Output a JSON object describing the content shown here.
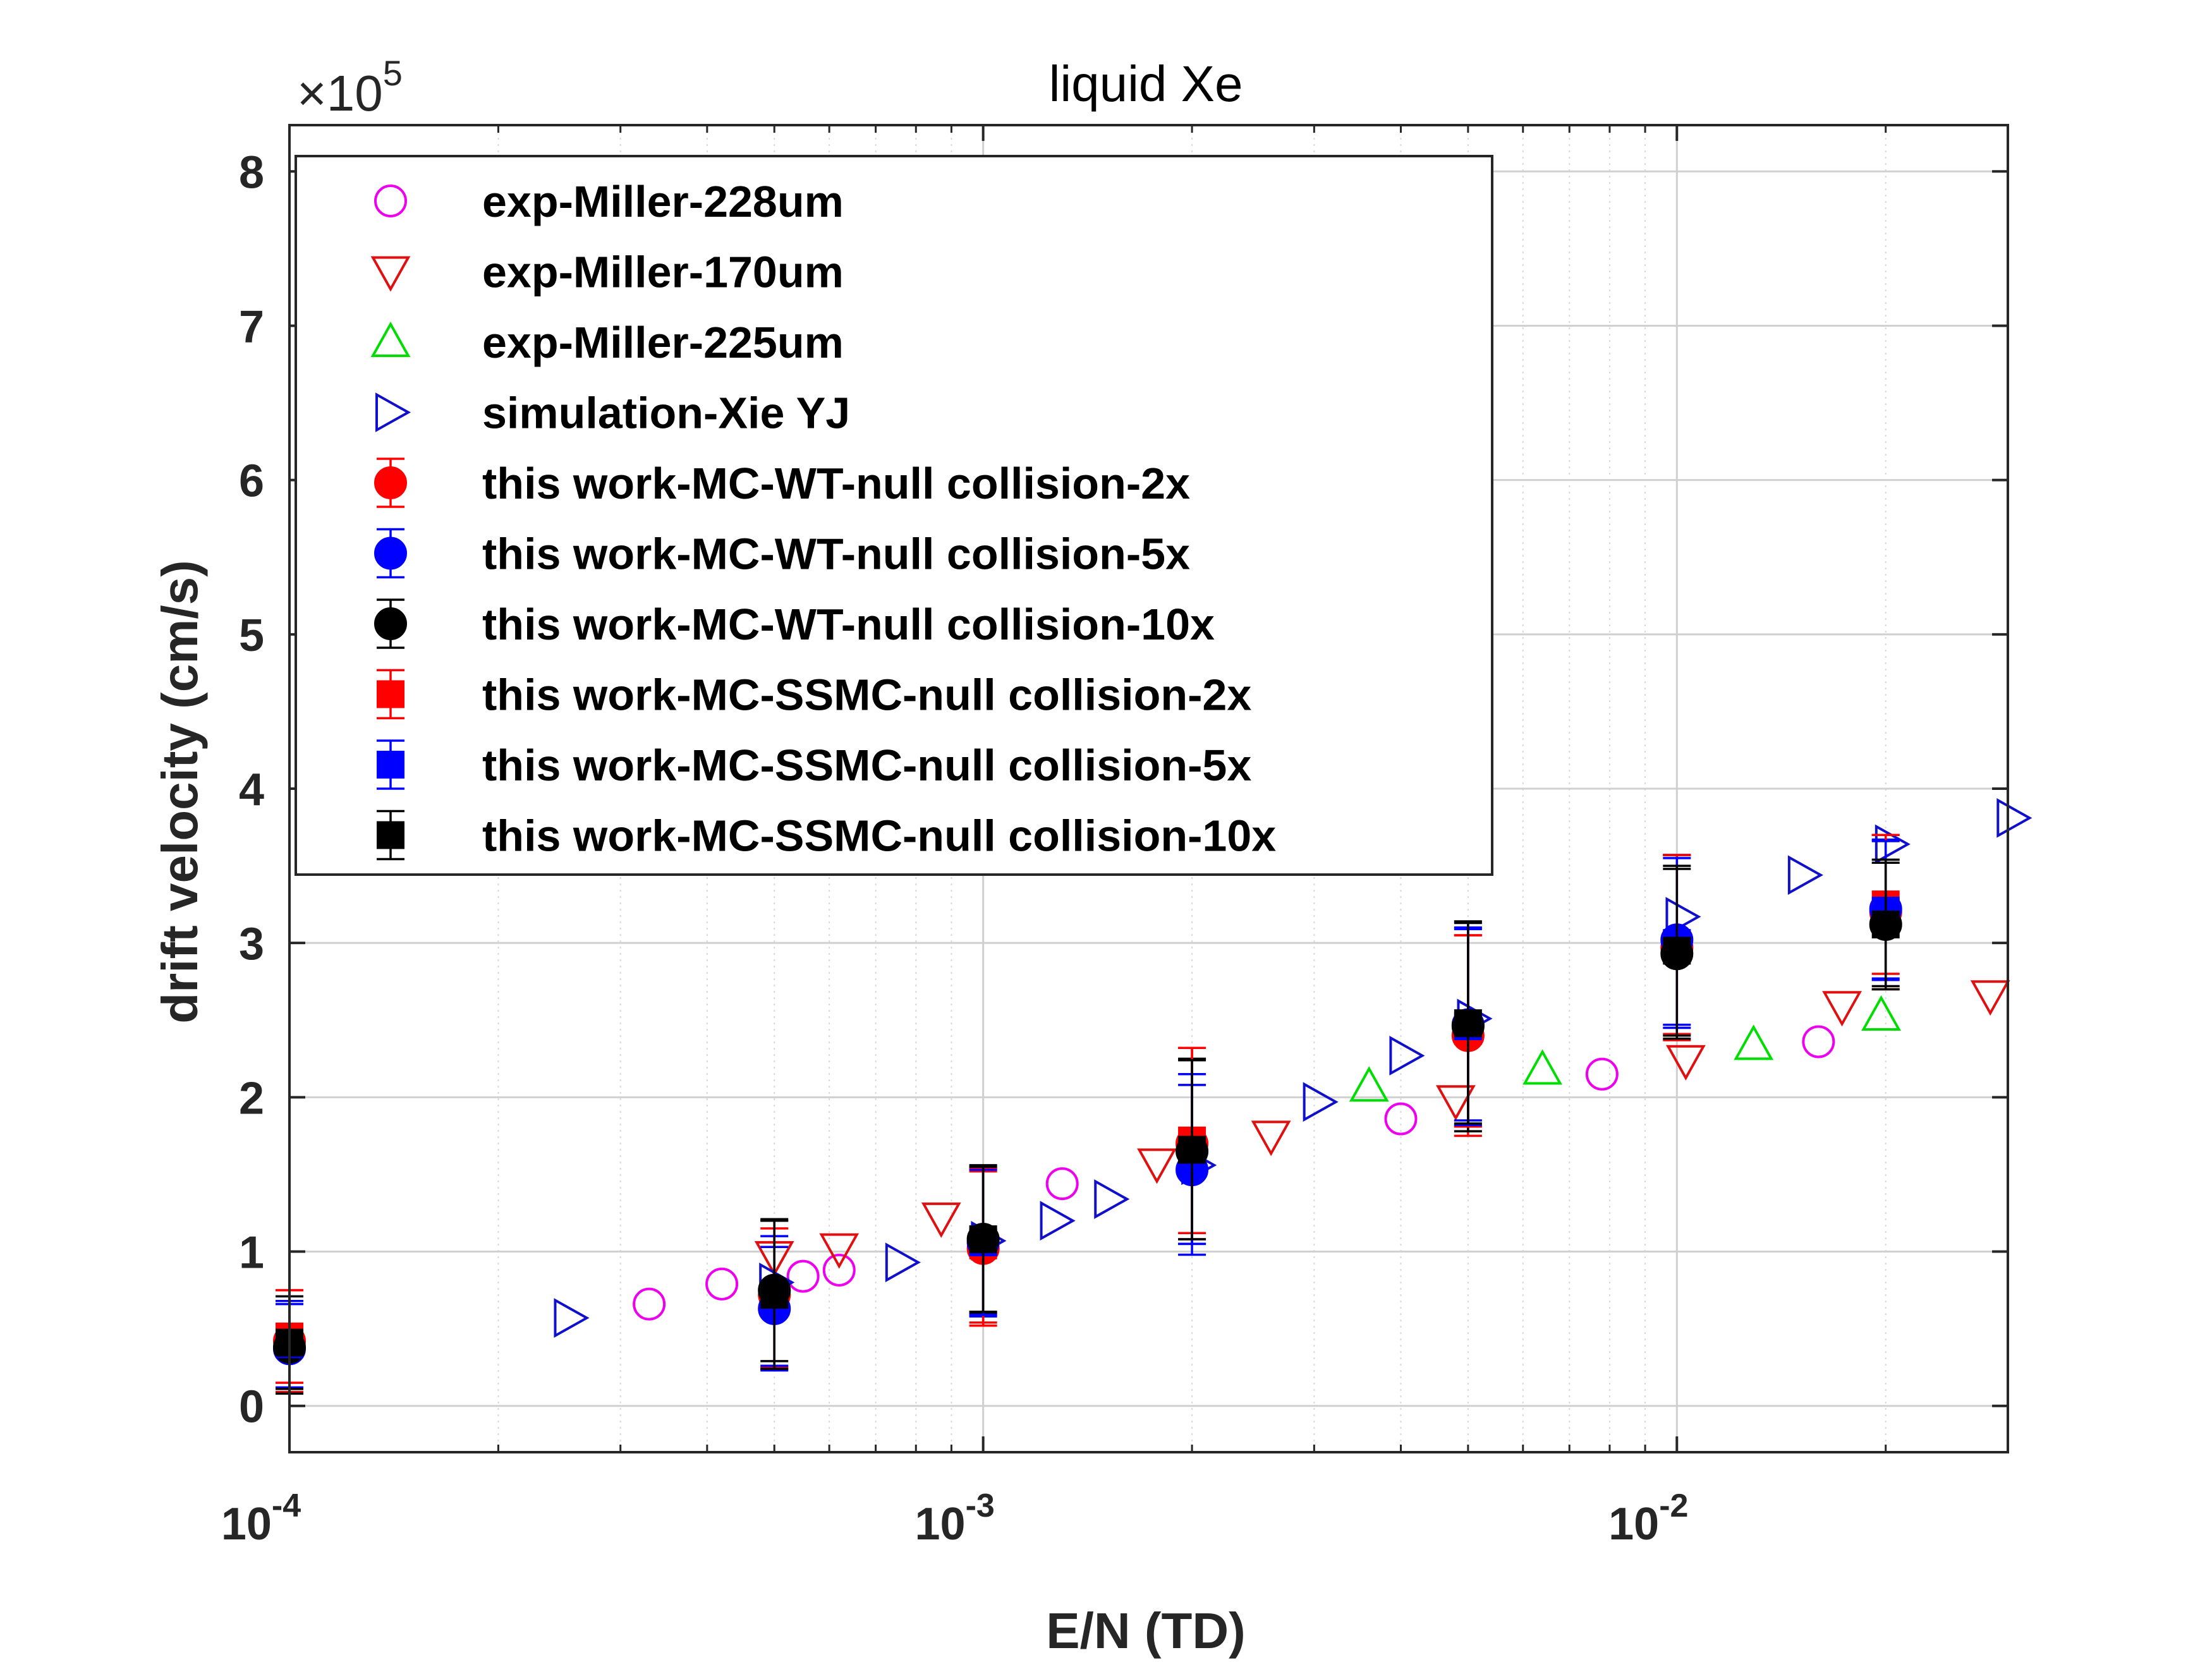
{
  "chart_data": {
    "type": "scatter",
    "title": "liquid Xe",
    "xlabel": "E/N (TD)",
    "ylabel": "drift velocity (cm/s)",
    "x_scale": "log",
    "xlim": [
      0.0001,
      0.03
    ],
    "ylim": [
      -0.3,
      8.3
    ],
    "y_multiplier": {
      "base": "10",
      "exponent": "5"
    },
    "grid": true,
    "legend_position": "top-left",
    "x_ticks": [
      {
        "value": 0.0001,
        "base": "10",
        "exp": "-4"
      },
      {
        "value": 0.001,
        "base": "10",
        "exp": "-3"
      },
      {
        "value": 0.01,
        "base": "10",
        "exp": "-2"
      }
    ],
    "y_ticks": [
      {
        "value": 0,
        "label": "0"
      },
      {
        "value": 1,
        "label": "1"
      },
      {
        "value": 2,
        "label": "2"
      },
      {
        "value": 3,
        "label": "3"
      },
      {
        "value": 4,
        "label": "4"
      },
      {
        "value": 5,
        "label": "5"
      },
      {
        "value": 6,
        "label": "6"
      },
      {
        "value": 7,
        "label": "7"
      },
      {
        "value": 8,
        "label": "8"
      }
    ],
    "series": [
      {
        "name": "exp-Miller-228um",
        "marker": "circle",
        "filled": false,
        "color": "#ee00ee",
        "points": [
          [
            0.00033,
            0.66
          ],
          [
            0.00042,
            0.79
          ],
          [
            0.00055,
            0.84
          ],
          [
            0.00062,
            0.88
          ],
          [
            0.0013,
            1.44
          ],
          [
            0.004,
            1.86
          ],
          [
            0.0078,
            2.15
          ],
          [
            0.016,
            2.36
          ]
        ]
      },
      {
        "name": "exp-Miller-170um",
        "marker": "triangle-down",
        "filled": false,
        "color": "#e01010",
        "points": [
          [
            0.0005,
            0.97
          ],
          [
            0.00062,
            1.02
          ],
          [
            0.00087,
            1.22
          ],
          [
            0.00178,
            1.57
          ],
          [
            0.0026,
            1.75
          ],
          [
            0.0048,
            1.98
          ],
          [
            0.0103,
            2.24
          ],
          [
            0.0173,
            2.59
          ],
          [
            0.0283,
            2.66
          ]
        ]
      },
      {
        "name": "exp-Miller-225um",
        "marker": "triangle-up",
        "filled": false,
        "color": "#00dd00",
        "points": [
          [
            0.0036,
            2.07
          ],
          [
            0.0064,
            2.18
          ],
          [
            0.0129,
            2.34
          ],
          [
            0.0197,
            2.53
          ]
        ]
      },
      {
        "name": "simulation-Xie YJ",
        "marker": "triangle-right",
        "filled": false,
        "color": "#1010cc",
        "points": [
          [
            0.000253,
            0.57
          ],
          [
            0.0005,
            0.8
          ],
          [
            0.00076,
            0.93
          ],
          [
            0.00101,
            1.07
          ],
          [
            0.00127,
            1.2
          ],
          [
            0.00152,
            1.34
          ],
          [
            0.00203,
            1.56
          ],
          [
            0.00304,
            1.97
          ],
          [
            0.00405,
            2.27
          ],
          [
            0.00507,
            2.51
          ],
          [
            0.01013,
            3.17
          ],
          [
            0.0152,
            3.44
          ],
          [
            0.0203,
            3.64
          ],
          [
            0.0304,
            3.81
          ]
        ]
      },
      {
        "name": "this work-MC-WT-null collision-2x",
        "marker": "circle",
        "filled": true,
        "color": "#ff0000",
        "error_bars": true,
        "points": [
          [
            0.0001,
            0.42,
            0.33
          ],
          [
            0.0005,
            0.72,
            0.48
          ],
          [
            0.001,
            1.02,
            0.5
          ],
          [
            0.002,
            1.7,
            0.62
          ],
          [
            0.005,
            2.4,
            0.65
          ],
          [
            0.01,
            2.97,
            0.6
          ],
          [
            0.02,
            3.2,
            0.5
          ]
        ]
      },
      {
        "name": "this work-MC-WT-null collision-5x",
        "marker": "circle",
        "filled": true,
        "color": "#0000ff",
        "error_bars": true,
        "points": [
          [
            0.0001,
            0.37,
            0.29
          ],
          [
            0.0005,
            0.63,
            0.4
          ],
          [
            0.001,
            1.06,
            0.48
          ],
          [
            0.002,
            1.53,
            0.55
          ],
          [
            0.005,
            2.47,
            0.62
          ],
          [
            0.01,
            3.02,
            0.55
          ],
          [
            0.02,
            3.22,
            0.45
          ]
        ]
      },
      {
        "name": "this work-MC-WT-null collision-10x",
        "marker": "circle",
        "filled": true,
        "color": "#000000",
        "error_bars": true,
        "points": [
          [
            0.0001,
            0.38,
            0.3
          ],
          [
            0.0005,
            0.75,
            0.46
          ],
          [
            0.001,
            1.08,
            0.48
          ],
          [
            0.002,
            1.65,
            0.6
          ],
          [
            0.005,
            2.46,
            0.68
          ],
          [
            0.01,
            2.93,
            0.55
          ],
          [
            0.02,
            3.12,
            0.4
          ]
        ]
      },
      {
        "name": "this work-MC-SSMC-null collision-2x",
        "marker": "square",
        "filled": true,
        "color": "#ff0000",
        "error_bars": true,
        "points": [
          [
            0.0001,
            0.45,
            0.3
          ],
          [
            0.0005,
            0.7,
            0.45
          ],
          [
            0.001,
            1.04,
            0.5
          ],
          [
            0.002,
            1.72,
            0.6
          ],
          [
            0.005,
            2.43,
            0.62
          ],
          [
            0.01,
            2.99,
            0.58
          ],
          [
            0.02,
            3.25,
            0.45
          ]
        ]
      },
      {
        "name": "this work-MC-SSMC-null collision-5x",
        "marker": "square",
        "filled": true,
        "color": "#0000ff",
        "error_bars": true,
        "points": [
          [
            0.0001,
            0.4,
            0.28
          ],
          [
            0.0005,
            0.68,
            0.42
          ],
          [
            0.001,
            1.06,
            0.47
          ],
          [
            0.002,
            1.6,
            0.55
          ],
          [
            0.005,
            2.46,
            0.64
          ],
          [
            0.01,
            3.0,
            0.55
          ],
          [
            0.02,
            3.21,
            0.45
          ]
        ]
      },
      {
        "name": "this work-MC-SSMC-null collision-10x",
        "marker": "square",
        "filled": true,
        "color": "#000000",
        "error_bars": true,
        "points": [
          [
            0.0001,
            0.41,
            0.3
          ],
          [
            0.0005,
            0.72,
            0.48
          ],
          [
            0.001,
            1.08,
            0.47
          ],
          [
            0.002,
            1.66,
            0.58
          ],
          [
            0.005,
            2.48,
            0.65
          ],
          [
            0.01,
            2.95,
            0.55
          ],
          [
            0.02,
            3.12,
            0.42
          ]
        ]
      }
    ]
  }
}
